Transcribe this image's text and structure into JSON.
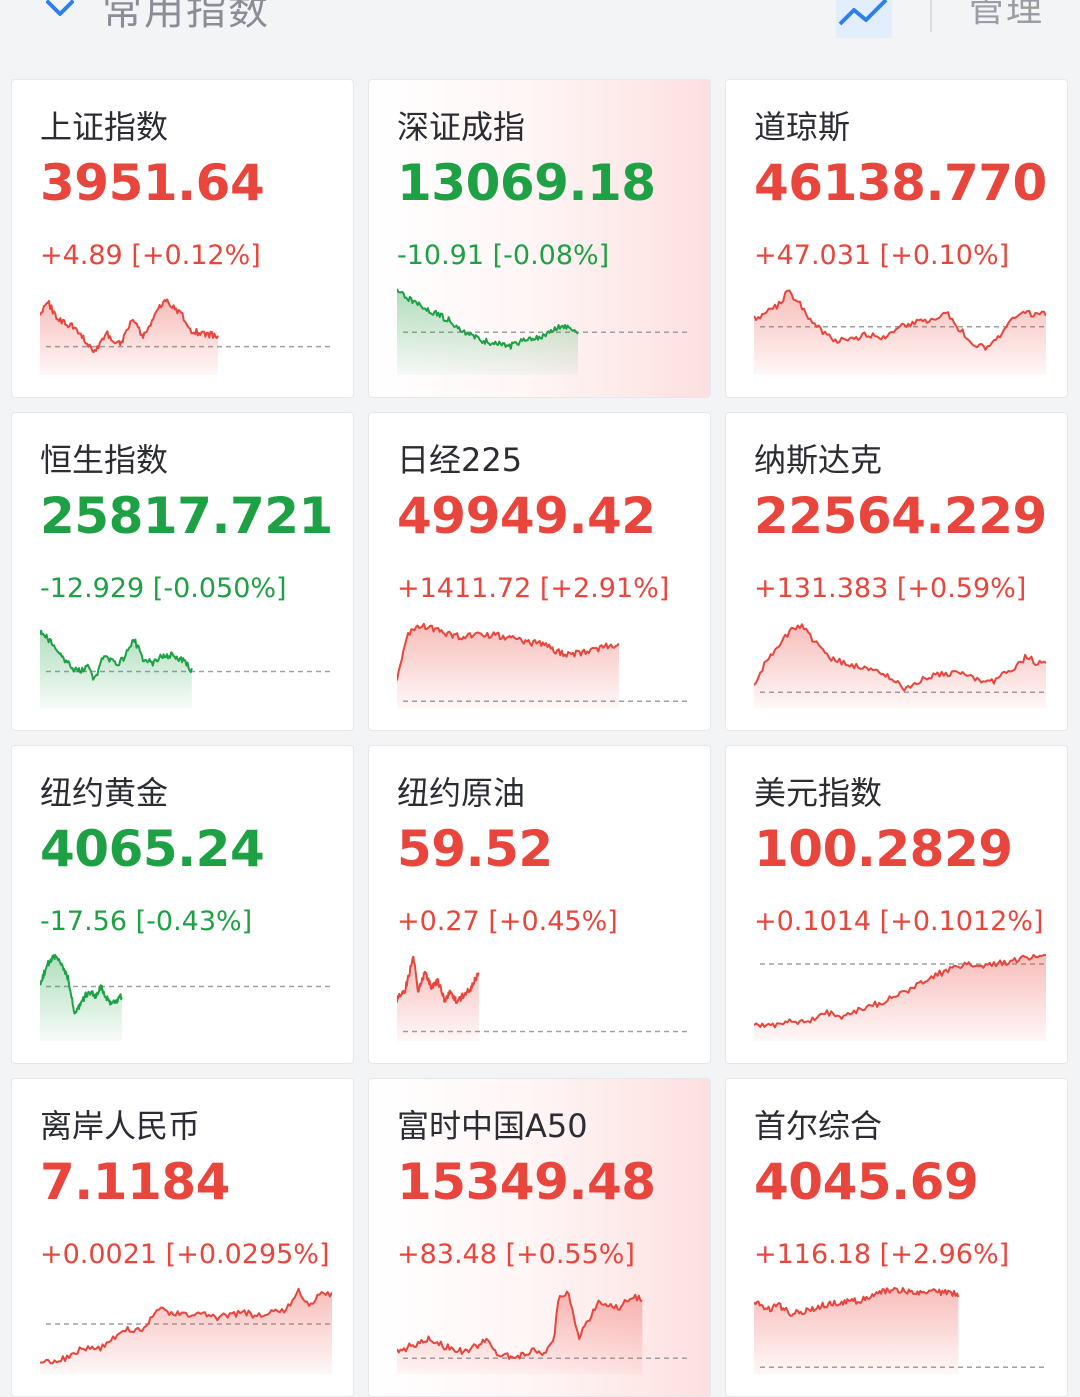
{
  "header": {
    "title": "常用指数",
    "manage_label": "管理"
  },
  "colors": {
    "up": "#e8453c",
    "down": "#1ea144"
  },
  "cards": [
    {
      "name": "上证指数",
      "value": "3951.64",
      "change": "+4.89 [+0.12%]",
      "trend": "up",
      "highlighted": false
    },
    {
      "name": "深证成指",
      "value": "13069.18",
      "change": "-10.91 [-0.08%]",
      "trend": "down",
      "highlighted": true
    },
    {
      "name": "道琼斯",
      "value": "46138.770",
      "change": "+47.031 [+0.10%]",
      "trend": "up",
      "highlighted": false
    },
    {
      "name": "恒生指数",
      "value": "25817.721",
      "change": "-12.929 [-0.050%]",
      "trend": "down",
      "highlighted": false
    },
    {
      "name": "日经225",
      "value": "49949.42",
      "change": "+1411.72 [+2.91%]",
      "trend": "up",
      "highlighted": false
    },
    {
      "name": "纳斯达克",
      "value": "22564.229",
      "change": "+131.383 [+0.59%]",
      "trend": "up",
      "highlighted": false
    },
    {
      "name": "纽约黄金",
      "value": "4065.24",
      "change": "-17.56 [-0.43%]",
      "trend": "down",
      "highlighted": false
    },
    {
      "name": "纽约原油",
      "value": "59.52",
      "change": "+0.27 [+0.45%]",
      "trend": "up",
      "highlighted": false
    },
    {
      "name": "美元指数",
      "value": "100.2829",
      "change": "+0.1014 [+0.1012%]",
      "trend": "up",
      "highlighted": false
    },
    {
      "name": "离岸人民币",
      "value": "7.1184",
      "change": "+0.0021 [+0.0295%]",
      "trend": "up",
      "highlighted": false
    },
    {
      "name": "富时中国A50",
      "value": "15349.48",
      "change": "+83.48 [+0.55%]",
      "trend": "up",
      "highlighted": true
    },
    {
      "name": "首尔综合",
      "value": "4045.69",
      "change": "+116.18 [+2.96%]",
      "trend": "up",
      "highlighted": false
    }
  ]
}
